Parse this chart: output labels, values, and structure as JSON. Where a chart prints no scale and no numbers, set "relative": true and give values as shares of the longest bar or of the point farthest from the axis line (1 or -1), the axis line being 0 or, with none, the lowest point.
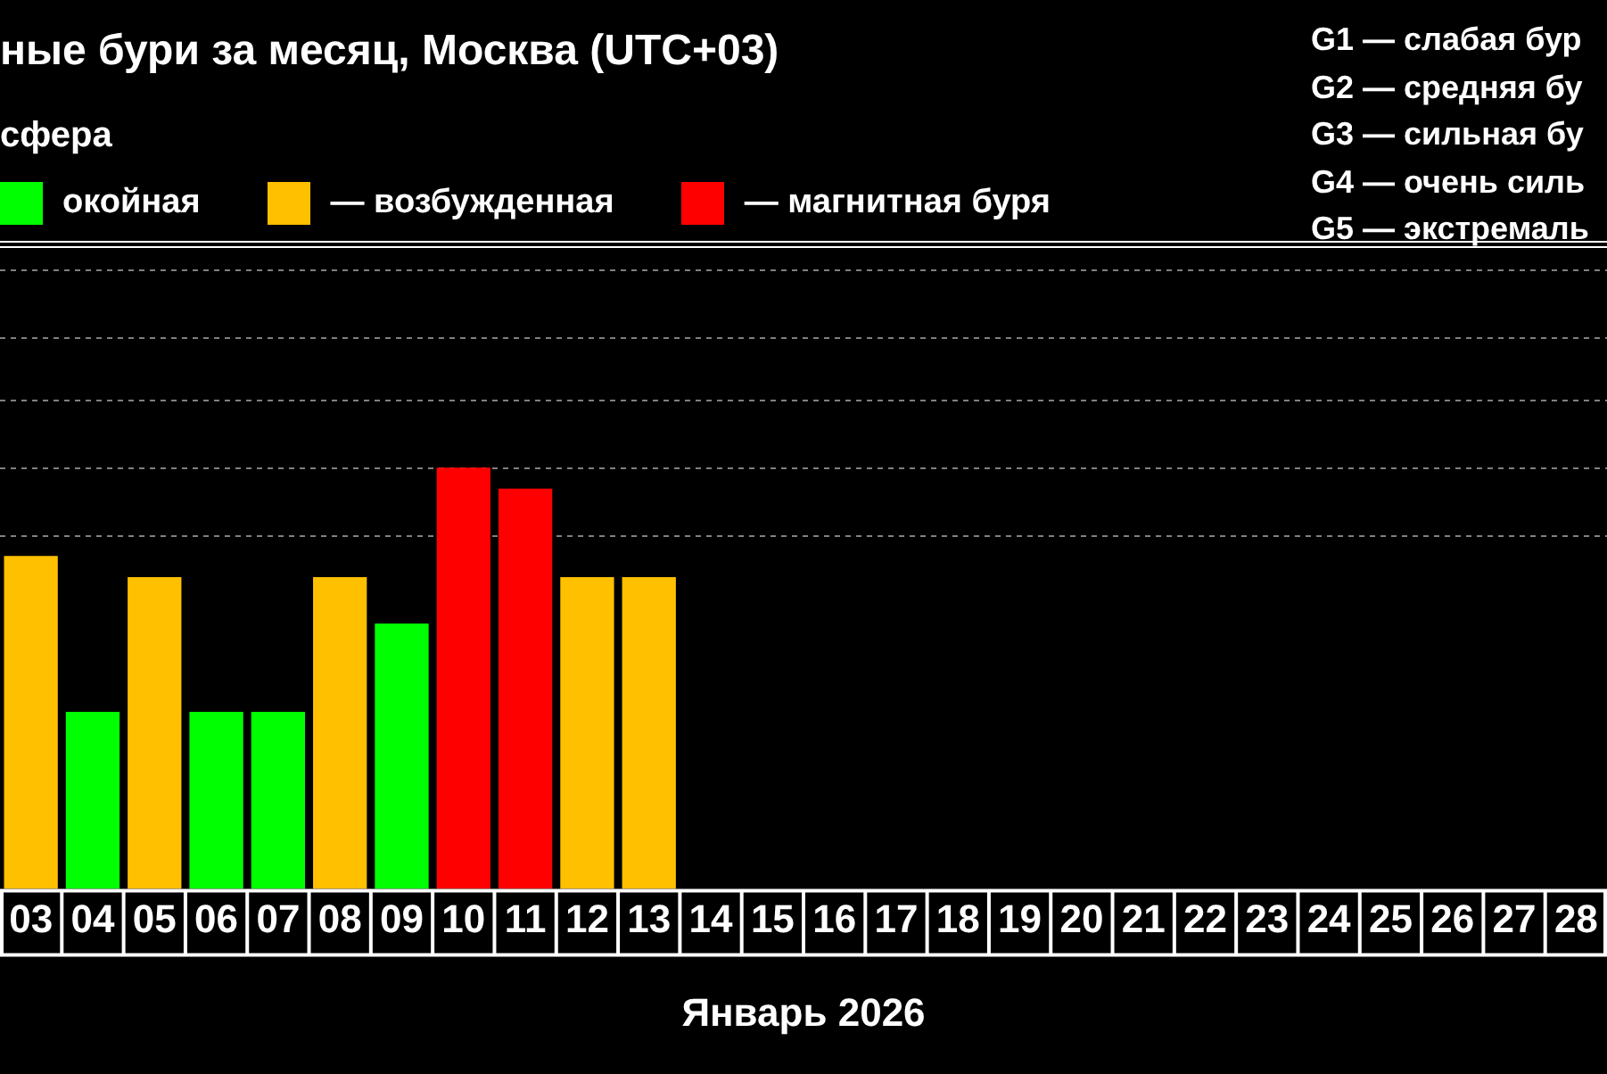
{
  "chart_data": {
    "type": "bar",
    "title": "ные бури за месяц, Москва (UTC+03)",
    "legend_title": "сфера",
    "xlabel": "Январь 2026",
    "categories": [
      "03",
      "04",
      "05",
      "06",
      "07",
      "08",
      "09",
      "10",
      "11",
      "12",
      "13",
      "14",
      "15",
      "16",
      "17",
      "18",
      "19",
      "20",
      "21",
      "22",
      "23",
      "24",
      "25",
      "26",
      "27",
      "28"
    ],
    "relative": true,
    "series": [
      {
        "name": "окойная",
        "color": "#00ff00",
        "values": [
          null,
          0.42,
          null,
          0.42,
          0.42,
          null,
          0.63,
          null,
          null,
          null,
          null,
          null,
          null,
          null,
          null,
          null,
          null,
          null,
          null,
          null,
          null,
          null,
          null,
          null,
          null,
          null
        ]
      },
      {
        "name": "— возбужденная",
        "color": "#ffc000",
        "values": [
          0.79,
          null,
          0.74,
          null,
          null,
          0.74,
          null,
          null,
          null,
          0.74,
          0.74,
          null,
          null,
          null,
          null,
          null,
          null,
          null,
          null,
          null,
          null,
          null,
          null,
          null,
          null,
          null
        ]
      },
      {
        "name": "— магнитная буря",
        "color": "#ff0000",
        "values": [
          null,
          null,
          null,
          null,
          null,
          null,
          null,
          1,
          0.95,
          null,
          null,
          null,
          null,
          null,
          null,
          null,
          null,
          null,
          null,
          null,
          null,
          null,
          null,
          null,
          null,
          null
        ]
      }
    ],
    "ref_lines": [
      {
        "axis": "y",
        "value": 0.84,
        "color": "#808080",
        "line_style": "dashed"
      },
      {
        "axis": "y",
        "value": 1,
        "color": "#808080",
        "line_style": "dashed"
      },
      {
        "axis": "y",
        "value": 1.16,
        "color": "#808080",
        "line_style": "dashed"
      },
      {
        "axis": "y",
        "value": 1.31,
        "color": "#808080",
        "line_style": "dashed"
      },
      {
        "axis": "y",
        "value": 1.47,
        "color": "#808080",
        "line_style": "dashed"
      }
    ],
    "legend": "top left",
    "annotations": [
      "G1 — слабая бур",
      "G2 — средняя бу",
      "G3 — сильная бу",
      "G4 — очень силь",
      "G5 — экстремаль"
    ]
  }
}
